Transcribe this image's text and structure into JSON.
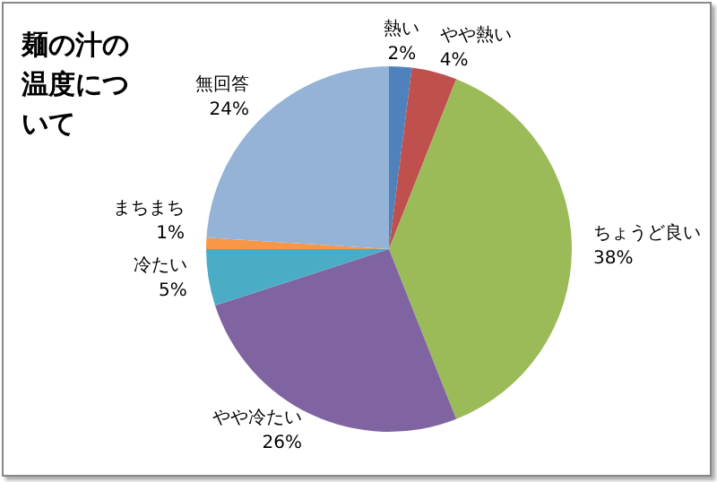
{
  "chart_data": {
    "type": "pie",
    "title": "麺の汁の温度について",
    "categories": [
      "熱い",
      "やや熱い",
      "ちょうど良い",
      "やや冷たい",
      "冷たい",
      "まちまち",
      "無回答"
    ],
    "values": [
      2,
      4,
      38,
      26,
      5,
      1,
      24
    ],
    "value_labels": [
      "2%",
      "4%",
      "38%",
      "26%",
      "5%",
      "1%",
      "24%"
    ],
    "colors": [
      "#4f81bd",
      "#c0504d",
      "#9bbb59",
      "#8064a2",
      "#4bacc6",
      "#f79646",
      "#95b3d7"
    ],
    "legend": false
  }
}
